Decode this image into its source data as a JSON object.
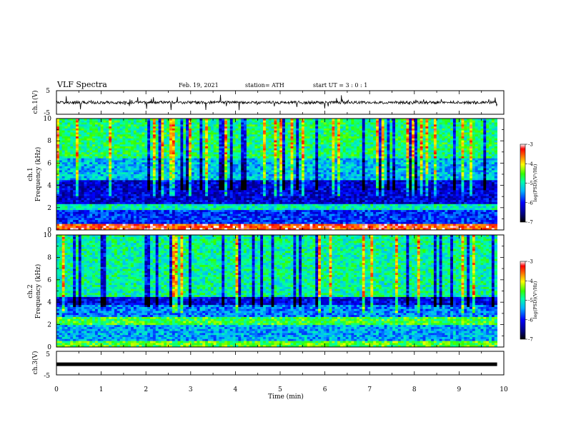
{
  "header": {
    "title": "VLF Spectra",
    "date": "Feb. 19, 2021",
    "station": "station= ATH",
    "start_ut": "start  UT =  3 : 0  : 1"
  },
  "chart_data": [
    {
      "type": "line",
      "id": "ch1-waveform",
      "ylabel": "ch.1(V)",
      "ylim": [
        -5,
        5
      ],
      "yticks": [
        "5",
        "-5"
      ],
      "xlim": [
        0,
        10
      ],
      "description_series": "baseline near 0 V with spikes"
    },
    {
      "type": "heatmap",
      "id": "ch1-spectrogram",
      "ylabel": "ch.1\nFrequency (kHz)",
      "ylabel_lines": [
        "ch.1",
        "Frequency (kHz)"
      ],
      "ylim": [
        0,
        10
      ],
      "yticks": [
        "0",
        "2",
        "4",
        "6",
        "8",
        "10"
      ],
      "xlim": [
        0,
        10
      ],
      "data_end_min": 9.85,
      "colorbar": {
        "label": "log(PSD)(V²/Hz)",
        "ticks": [
          "-3",
          "-4",
          "-5",
          "-6",
          "-7"
        ],
        "range": [
          -7,
          -3
        ]
      }
    },
    {
      "type": "heatmap",
      "id": "ch2-spectrogram",
      "ylabel": "ch.2\nFrequency (kHz)",
      "ylabel_lines": [
        "ch.2",
        "Frequency (kHz)"
      ],
      "ylim": [
        0,
        10
      ],
      "yticks": [
        "0",
        "2",
        "4",
        "6",
        "8",
        "10"
      ],
      "xlim": [
        0,
        10
      ],
      "data_end_min": 9.85,
      "colorbar": {
        "label": "log(PSD)(V²/Hz)",
        "ticks": [
          "-3",
          "-4",
          "-5",
          "-6",
          "-7"
        ],
        "range": [
          -7,
          -3
        ]
      }
    },
    {
      "type": "line",
      "id": "ch3-waveform",
      "ylabel": "ch.3(V)",
      "ylim": [
        -5,
        5
      ],
      "yticks": [
        "5",
        "-5"
      ],
      "xlim": [
        0,
        10
      ],
      "xlabel": "Time  (min)",
      "xticks": [
        "0",
        "1",
        "2",
        "3",
        "4",
        "5",
        "6",
        "7",
        "8",
        "9",
        "10"
      ],
      "series": [
        {
          "values": [
            -0.5,
            -0.5
          ],
          "x": [
            0,
            9.85
          ]
        }
      ]
    }
  ]
}
